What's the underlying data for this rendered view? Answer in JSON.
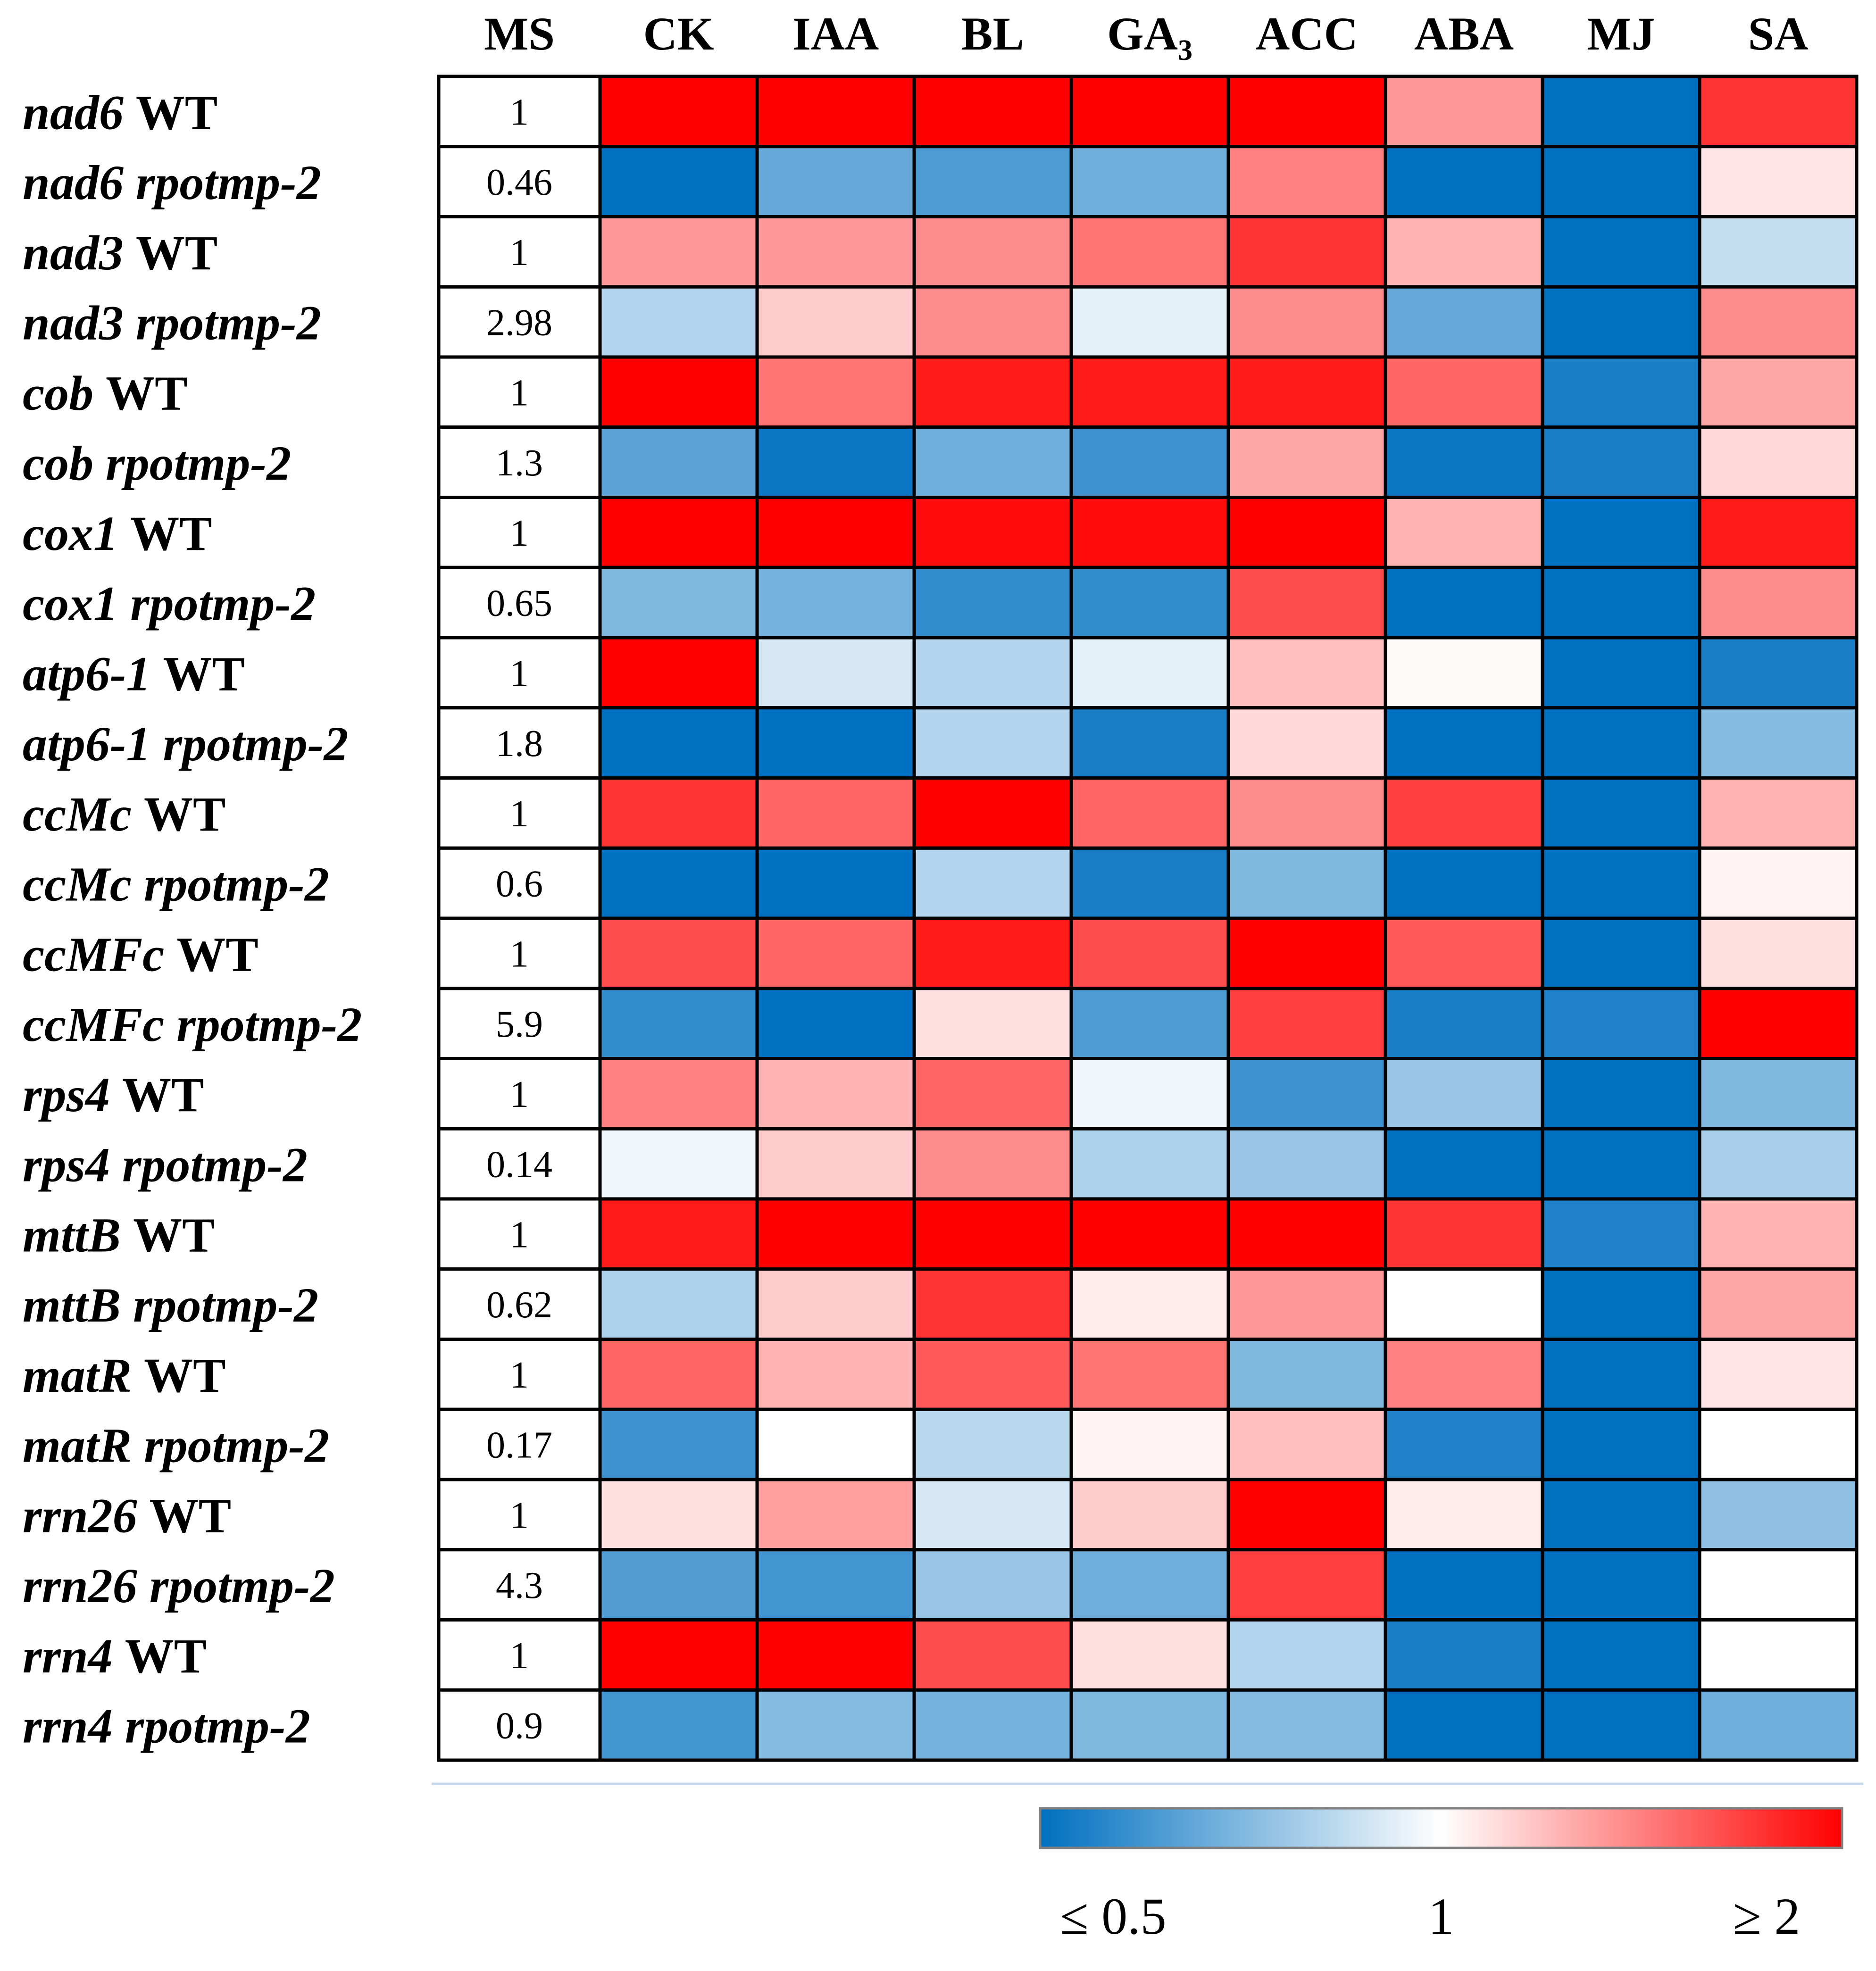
{
  "chart_data": {
    "type": "heatmap",
    "title": "",
    "columns": [
      "MS",
      "CK",
      "IAA",
      "BL",
      "GA3",
      "ACC",
      "ABA",
      "MJ",
      "SA"
    ],
    "column_labels": [
      {
        "main": "MS",
        "sub": ""
      },
      {
        "main": "CK",
        "sub": ""
      },
      {
        "main": "IAA",
        "sub": ""
      },
      {
        "main": "BL",
        "sub": ""
      },
      {
        "main": "GA",
        "sub": "3"
      },
      {
        "main": "ACC",
        "sub": ""
      },
      {
        "main": "ABA",
        "sub": ""
      },
      {
        "main": "MJ",
        "sub": ""
      },
      {
        "main": "SA",
        "sub": ""
      }
    ],
    "rows": [
      {
        "gene": "nad6",
        "line": "WT",
        "ms": "1"
      },
      {
        "gene": "nad6",
        "line": "rpotmp-2",
        "ms": "0.46"
      },
      {
        "gene": "nad3",
        "line": "WT",
        "ms": "1"
      },
      {
        "gene": "nad3",
        "line": "rpotmp-2",
        "ms": "2.98"
      },
      {
        "gene": "cob",
        "line": "WT",
        "ms": "1"
      },
      {
        "gene": "cob",
        "line": "rpotmp-2",
        "ms": "1.3"
      },
      {
        "gene": "cox1",
        "line": "WT",
        "ms": "1"
      },
      {
        "gene": "cox1",
        "line": "rpotmp-2",
        "ms": "0.65"
      },
      {
        "gene": "atp6-1",
        "line": "WT",
        "ms": "1"
      },
      {
        "gene": "atp6-1",
        "line": "rpotmp-2",
        "ms": "1.8"
      },
      {
        "gene": "ccMc",
        "line": "WT",
        "ms": "1"
      },
      {
        "gene": "ccMc",
        "line": "rpotmp-2",
        "ms": "0.6"
      },
      {
        "gene": "ccMFc",
        "line": "WT",
        "ms": "1"
      },
      {
        "gene": "ccMFc",
        "line": "rpotmp-2",
        "ms": "5.9"
      },
      {
        "gene": "rps4",
        "line": "WT",
        "ms": "1"
      },
      {
        "gene": "rps4",
        "line": "rpotmp-2",
        "ms": "0.14"
      },
      {
        "gene": "mttB",
        "line": "WT",
        "ms": "1"
      },
      {
        "gene": "mttB",
        "line": "rpotmp-2",
        "ms": "0.62"
      },
      {
        "gene": "matR",
        "line": "WT",
        "ms": "1"
      },
      {
        "gene": "matR",
        "line": "rpotmp-2",
        "ms": "0.17"
      },
      {
        "gene": "rrn26",
        "line": "WT",
        "ms": "1"
      },
      {
        "gene": "rrn26",
        "line": "rpotmp-2",
        "ms": "4.3"
      },
      {
        "gene": "rrn4",
        "line": "WT",
        "ms": "1"
      },
      {
        "gene": "rrn4",
        "line": "rpotmp-2",
        "ms": "0.9"
      }
    ],
    "treatment_columns": [
      "CK",
      "IAA",
      "BL",
      "GA3",
      "ACC",
      "ABA",
      "MJ",
      "SA"
    ],
    "values": [
      [
        2.0,
        2.0,
        2.0,
        2.0,
        2.0,
        1.4,
        0.5,
        1.8
      ],
      [
        0.5,
        0.7,
        0.65,
        0.72,
        1.5,
        0.5,
        0.5,
        1.1
      ],
      [
        1.4,
        1.4,
        1.45,
        1.55,
        1.8,
        1.3,
        0.5,
        0.88
      ],
      [
        0.85,
        1.2,
        1.45,
        0.95,
        1.45,
        0.7,
        0.5,
        1.45
      ],
      [
        2.0,
        1.55,
        1.9,
        1.9,
        1.9,
        1.6,
        0.55,
        1.35
      ],
      [
        0.68,
        0.52,
        0.72,
        0.62,
        1.35,
        0.52,
        0.55,
        1.15
      ],
      [
        2.0,
        2.0,
        1.95,
        1.95,
        2.0,
        1.3,
        0.5,
        1.9
      ],
      [
        0.75,
        0.73,
        0.6,
        0.6,
        1.7,
        0.5,
        0.5,
        1.45
      ],
      [
        2.0,
        0.92,
        0.85,
        0.95,
        1.25,
        1.02,
        0.5,
        0.55
      ],
      [
        0.5,
        0.5,
        0.85,
        0.55,
        1.15,
        0.5,
        0.5,
        0.76
      ],
      [
        1.8,
        1.6,
        2.0,
        1.6,
        1.45,
        1.75,
        0.5,
        1.3
      ],
      [
        0.5,
        0.5,
        0.85,
        0.55,
        0.75,
        0.5,
        0.5,
        1.05
      ],
      [
        1.7,
        1.6,
        1.9,
        1.7,
        2.0,
        1.65,
        0.5,
        1.12
      ],
      [
        0.6,
        0.5,
        1.12,
        0.65,
        1.75,
        0.55,
        0.56,
        2.0
      ],
      [
        1.5,
        1.3,
        1.6,
        0.97,
        0.62,
        0.8,
        0.5,
        0.75
      ],
      [
        0.97,
        1.2,
        1.45,
        0.84,
        0.8,
        0.5,
        0.5,
        0.83
      ],
      [
        1.9,
        2.0,
        2.0,
        2.0,
        2.0,
        1.8,
        0.56,
        1.3
      ],
      [
        0.84,
        1.2,
        1.8,
        1.08,
        1.4,
        1.0,
        0.5,
        1.35
      ],
      [
        1.6,
        1.3,
        1.65,
        1.55,
        0.75,
        1.5,
        0.5,
        1.1
      ],
      [
        0.62,
        1.0,
        0.86,
        1.05,
        1.25,
        0.56,
        0.5,
        1.0
      ],
      [
        1.12,
        1.38,
        0.92,
        1.2,
        2.0,
        1.08,
        0.5,
        0.78
      ],
      [
        0.66,
        0.63,
        0.8,
        0.72,
        1.75,
        0.5,
        0.5,
        1.0
      ],
      [
        2.0,
        2.0,
        1.7,
        1.12,
        0.85,
        0.55,
        0.5,
        1.0
      ],
      [
        0.63,
        0.76,
        0.73,
        0.75,
        0.76,
        0.5,
        0.5,
        0.72
      ]
    ],
    "color_scale": {
      "min_label": "≤ 0.5",
      "mid_label": "1",
      "max_label": "≥ 2",
      "min_value": 0.5,
      "mid_value": 1,
      "max_value": 2,
      "min_color": "#0070c0",
      "mid_color": "#ffffff",
      "max_color": "#ff0000"
    },
    "legend_placement": "bottom-right"
  }
}
